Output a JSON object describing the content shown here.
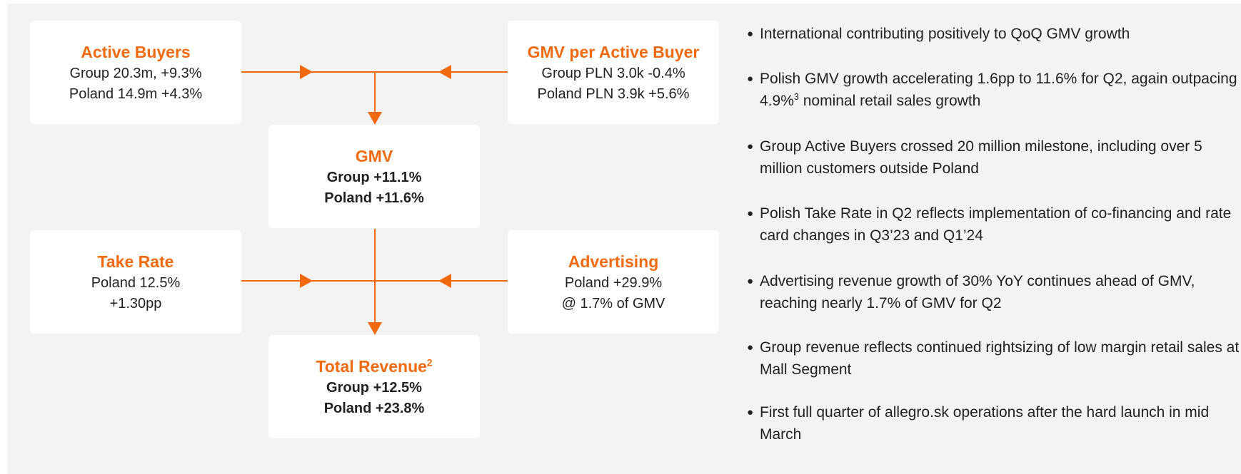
{
  "boxes": [
    {
      "title": "Active Buyers",
      "lines": [
        "Group 20.3m, +9.3%",
        "Poland 14.9m +4.3%"
      ]
    },
    {
      "title": "GMV per Active Buyer",
      "lines": [
        "Group PLN 3.0k -0.4%",
        "Poland PLN 3.9k +5.6%"
      ]
    },
    {
      "title": "GMV",
      "lines": [
        "Group +11.1%",
        "Poland +11.6%"
      ]
    },
    {
      "title": "Take Rate",
      "lines": [
        "Poland 12.5%",
        "+1.30pp"
      ]
    },
    {
      "title": "Advertising",
      "lines": [
        "Poland +29.9%",
        "@ 1.7% of GMV"
      ]
    },
    {
      "title": "Total Revenue",
      "title_sup": "2",
      "lines": [
        "Group +12.5%",
        "Poland +23.8%"
      ]
    }
  ],
  "bullets": [
    {
      "text": "International contributing positively to QoQ GMV growth"
    },
    {
      "text": "Polish GMV growth accelerating 1.6pp to 11.6% for Q2, again outpacing 4.9%",
      "sup": "3",
      "after": " nominal retail sales growth"
    },
    {
      "text": "Group Active Buyers crossed 20 million milestone, including over 5 million customers outside Poland"
    },
    {
      "text": "Polish Take Rate in Q2 reflects implementation of co-financing and rate card changes in Q3’23 and Q1’24"
    },
    {
      "text": "Advertising revenue growth of 30% YoY continues ahead of GMV, reaching nearly 1.7% of GMV for Q2"
    },
    {
      "text": "Group revenue reflects continued rightsizing of low margin retail sales at Mall Segment"
    },
    {
      "text": "First full quarter of allegro.sk operations after the hard launch in mid March"
    }
  ]
}
